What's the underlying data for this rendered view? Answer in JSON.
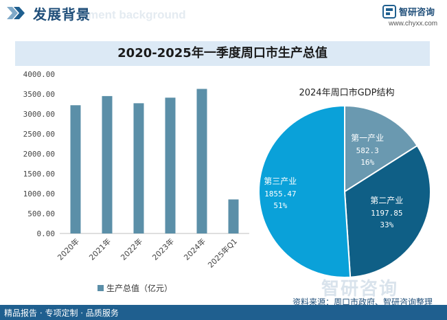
{
  "header": {
    "title": "发展背景",
    "ghost_text": "ment background"
  },
  "brand": {
    "name": "智研咨询",
    "url": "www.chyxx.com"
  },
  "footer": {
    "services": "精品报告 · 专项定制 · 品质服务",
    "source": "资料来源：周口市政府、智研咨询整理"
  },
  "watermark": {
    "text": "智研咨询"
  },
  "colors": {
    "bar": "#5b8fa8",
    "pie_primary": "#6a99b0",
    "pie_secondary": "#0f5f86",
    "pie_tertiary": "#0aa1d9",
    "accent": "#1f4e79",
    "footer_bg": "#1f5f8f"
  },
  "chart_data": [
    {
      "type": "bar",
      "title": "2020-2025年一季度周口市生产总值",
      "categories": [
        "2020年",
        "2021年",
        "2022年",
        "2023年",
        "2024年",
        "2025年Q1"
      ],
      "series": [
        {
          "name": "生产总值（亿元）",
          "values": [
            3220,
            3450,
            3270,
            3410,
            3630,
            855
          ]
        }
      ],
      "ylim": [
        0,
        4000
      ],
      "yticks": [
        "0.00",
        "500.00",
        "1000.00",
        "1500.00",
        "2000.00",
        "2500.00",
        "3000.00",
        "3500.00",
        "4000.00"
      ],
      "xlabel": "",
      "ylabel": "",
      "legend": "bottom",
      "grid": false
    },
    {
      "type": "pie",
      "title": "2024年周口市GDP结构",
      "slices": [
        {
          "label": "第一产业",
          "value": 582.3,
          "value_text": "582.3",
          "pct_text": "16%"
        },
        {
          "label": "第二产业",
          "value": 1197.85,
          "value_text": "1197.85",
          "pct_text": "33%"
        },
        {
          "label": "第三产业",
          "value": 1855.47,
          "value_text": "1855.47",
          "pct_text": "51%"
        }
      ]
    }
  ]
}
